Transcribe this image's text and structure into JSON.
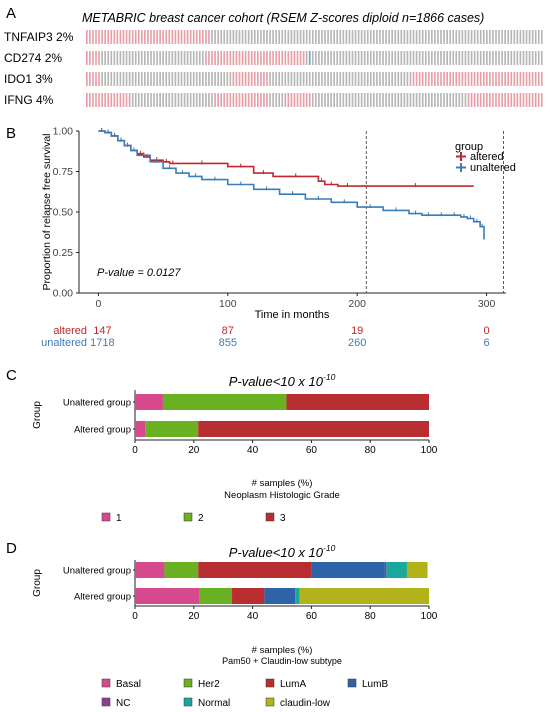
{
  "panel_a": {
    "letter": "A",
    "title": "METABRIC breast cancer cohort (RSEM Z-scores diploid n=1866 cases)",
    "tracks": [
      {
        "gene": "TNFAIP3",
        "pct": "2%",
        "label": "TNFAIP3 2%"
      },
      {
        "gene": "CD274",
        "pct": "2%",
        "label": "CD274 2%"
      },
      {
        "gene": "IDO1",
        "pct": "3%",
        "label": "IDO1 3%"
      },
      {
        "gene": "IFNG",
        "pct": "4%",
        "label": "IFNG 4%"
      }
    ],
    "colors": {
      "altered_mrna": "#e8a0a8",
      "not_altered": "#b7b7b7",
      "other_alteration": "#6aa3d8"
    }
  },
  "chart_data": [
    {
      "panel": "B",
      "type": "line",
      "ylabel": "Proportion of relapse free survival",
      "xlabel": "Time in months",
      "xlim": [
        -15,
        315
      ],
      "ylim": [
        0,
        1
      ],
      "x_ticks": [
        0,
        100,
        200,
        300
      ],
      "y_ticks": [
        "0.00",
        "0.25",
        "0.50",
        "0.75",
        "1.00"
      ],
      "legend": {
        "title": "group",
        "position": "top-right"
      },
      "annotation": "P-value = 0.0127",
      "vlines": [
        207,
        313
      ],
      "series": [
        {
          "name": "altered",
          "color": "#c0282d",
          "x": [
            0,
            5,
            10,
            15,
            20,
            25,
            30,
            35,
            40,
            50,
            55,
            60,
            100,
            120,
            135,
            170,
            175,
            185,
            200,
            290
          ],
          "y": [
            1.0,
            0.99,
            0.97,
            0.94,
            0.91,
            0.88,
            0.86,
            0.84,
            0.82,
            0.81,
            0.8,
            0.8,
            0.78,
            0.74,
            0.72,
            0.69,
            0.67,
            0.66,
            0.66,
            0.66
          ]
        },
        {
          "name": "unaltered",
          "color": "#3b7db8",
          "x": [
            0,
            5,
            10,
            15,
            20,
            25,
            30,
            40,
            50,
            60,
            70,
            80,
            100,
            120,
            140,
            160,
            180,
            200,
            220,
            240,
            250,
            260,
            270,
            280,
            285,
            290,
            295,
            298
          ],
          "y": [
            1.0,
            0.99,
            0.97,
            0.94,
            0.91,
            0.88,
            0.85,
            0.81,
            0.77,
            0.74,
            0.72,
            0.7,
            0.67,
            0.64,
            0.61,
            0.58,
            0.56,
            0.53,
            0.51,
            0.49,
            0.48,
            0.48,
            0.48,
            0.47,
            0.46,
            0.44,
            0.41,
            0.33
          ]
        }
      ],
      "risk_table": {
        "times": [
          0,
          100,
          200,
          300
        ],
        "rows": [
          {
            "name": "altered",
            "color": "#c0282d",
            "values": [
              "147",
              "87",
              "19",
              "0"
            ]
          },
          {
            "name": "unaltered",
            "color": "#3b7db8",
            "values": [
              "1718",
              "855",
              "260",
              "6"
            ]
          }
        ]
      }
    },
    {
      "panel": "C",
      "type": "bar",
      "title_main": "P-value<10 x 10",
      "title_sup": "-10",
      "ylabel": "Group",
      "xlabel": "# samples (%)",
      "subtitle": "Neoplasm Histologic Grade",
      "xlim": [
        0,
        100
      ],
      "x_ticks": [
        0,
        20,
        40,
        60,
        80,
        100
      ],
      "categories": [
        "Unaltered group",
        "Altered group"
      ],
      "series": [
        {
          "name": "1",
          "color": "#d6498c",
          "values": [
            9.5,
            3.5
          ]
        },
        {
          "name": "2",
          "color": "#6ab023",
          "values": [
            42,
            18
          ]
        },
        {
          "name": "3",
          "color": "#b82e30",
          "values": [
            48.5,
            78.5
          ]
        }
      ],
      "legend": {
        "position": "bottom"
      }
    },
    {
      "panel": "D",
      "type": "bar",
      "title_main": "P-value<10 x 10",
      "title_sup": "-10",
      "ylabel": "Group",
      "xlabel": "# samples (%)",
      "subtitle": "Pam50 + Claudin-low subtype",
      "xlim": [
        0,
        100
      ],
      "x_ticks": [
        0,
        20,
        40,
        60,
        80,
        100
      ],
      "categories": [
        "Unaltered group",
        "Altered group"
      ],
      "series": [
        {
          "name": "Basal",
          "color": "#d6498c",
          "values": [
            10,
            22
          ]
        },
        {
          "name": "Her2",
          "color": "#6ab023",
          "values": [
            11.5,
            11
          ]
        },
        {
          "name": "LumA",
          "color": "#b82e30",
          "values": [
            38.5,
            11
          ]
        },
        {
          "name": "LumB",
          "color": "#2f63a8",
          "values": [
            25,
            10.5
          ]
        },
        {
          "name": "NC",
          "color": "#8e3d96",
          "values": [
            0.5,
            0
          ]
        },
        {
          "name": "Normal",
          "color": "#1aa79c",
          "values": [
            7,
            1.5
          ]
        },
        {
          "name": "claudin-low",
          "color": "#b2b21a",
          "values": [
            7,
            44
          ]
        }
      ],
      "legend": {
        "position": "bottom"
      }
    }
  ],
  "panel_letters": {
    "b": "B",
    "c": "C",
    "d": "D"
  }
}
